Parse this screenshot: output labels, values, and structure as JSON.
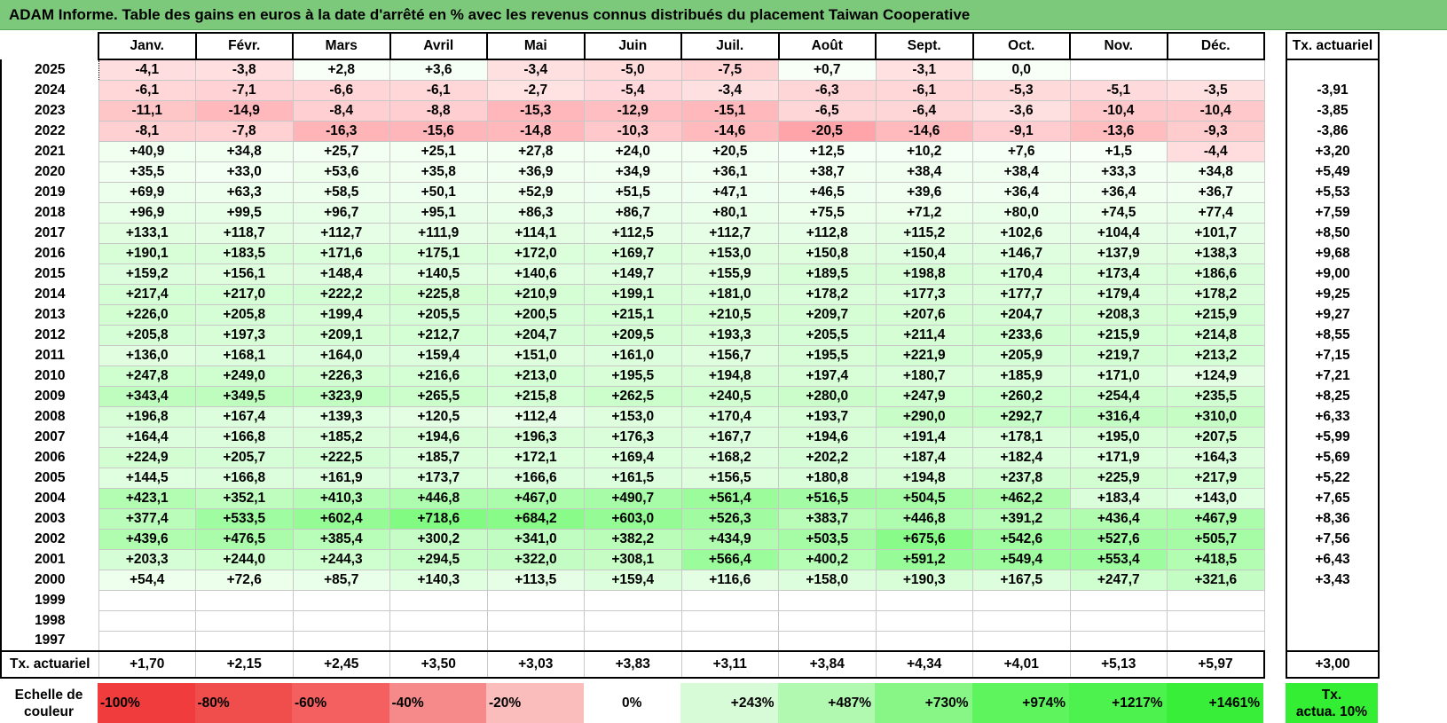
{
  "title": "ADAM Informe. Table des gains en euros à la date d'arrêté en % avec les revenus connus distribués du placement Taiwan Cooperative",
  "months": [
    "Janv.",
    "Févr.",
    "Mars",
    "Avril",
    "Mai",
    "Juin",
    "Juil.",
    "Août",
    "Sept.",
    "Oct.",
    "Nov.",
    "Déc."
  ],
  "actuarial_header": "Tx. actuariel",
  "rows": [
    {
      "year": "2025",
      "values": [
        "-4,1",
        "-3,8",
        "+2,8",
        "+3,6",
        "-3,4",
        "-5,0",
        "-7,5",
        "+0,7",
        "-3,1",
        "0,0",
        "",
        ""
      ],
      "rate": ""
    },
    {
      "year": "2024",
      "values": [
        "-6,1",
        "-7,1",
        "-6,6",
        "-6,1",
        "-2,7",
        "-5,4",
        "-3,4",
        "-6,3",
        "-6,1",
        "-5,3",
        "-5,1",
        "-3,5"
      ],
      "rate": "-3,91"
    },
    {
      "year": "2023",
      "values": [
        "-11,1",
        "-14,9",
        "-8,4",
        "-8,8",
        "-15,3",
        "-12,9",
        "-15,1",
        "-6,5",
        "-6,4",
        "-3,6",
        "-10,4",
        "-10,4"
      ],
      "rate": "-3,85"
    },
    {
      "year": "2022",
      "values": [
        "-8,1",
        "-7,8",
        "-16,3",
        "-15,6",
        "-14,8",
        "-10,3",
        "-14,6",
        "-20,5",
        "-14,6",
        "-9,1",
        "-13,6",
        "-9,3"
      ],
      "rate": "-3,86"
    },
    {
      "year": "2021",
      "values": [
        "+40,9",
        "+34,8",
        "+25,7",
        "+25,1",
        "+27,8",
        "+24,0",
        "+20,5",
        "+12,5",
        "+10,2",
        "+7,6",
        "+1,5",
        "-4,4"
      ],
      "rate": "+3,20"
    },
    {
      "year": "2020",
      "values": [
        "+35,5",
        "+33,0",
        "+53,6",
        "+35,8",
        "+36,9",
        "+34,9",
        "+36,1",
        "+38,7",
        "+38,4",
        "+38,4",
        "+33,3",
        "+34,8"
      ],
      "rate": "+5,49"
    },
    {
      "year": "2019",
      "values": [
        "+69,9",
        "+63,3",
        "+58,5",
        "+50,1",
        "+52,9",
        "+51,5",
        "+47,1",
        "+46,5",
        "+39,6",
        "+36,4",
        "+36,4",
        "+36,7"
      ],
      "rate": "+5,53"
    },
    {
      "year": "2018",
      "values": [
        "+96,9",
        "+99,5",
        "+96,7",
        "+95,1",
        "+86,3",
        "+86,7",
        "+80,1",
        "+75,5",
        "+71,2",
        "+80,0",
        "+74,5",
        "+77,4"
      ],
      "rate": "+7,59"
    },
    {
      "year": "2017",
      "values": [
        "+133,1",
        "+118,7",
        "+112,7",
        "+111,9",
        "+114,1",
        "+112,5",
        "+112,7",
        "+112,8",
        "+115,2",
        "+102,6",
        "+104,4",
        "+101,7"
      ],
      "rate": "+8,50"
    },
    {
      "year": "2016",
      "values": [
        "+190,1",
        "+183,5",
        "+171,6",
        "+175,1",
        "+172,0",
        "+169,7",
        "+153,0",
        "+150,8",
        "+150,4",
        "+146,7",
        "+137,9",
        "+138,3"
      ],
      "rate": "+9,68"
    },
    {
      "year": "2015",
      "values": [
        "+159,2",
        "+156,1",
        "+148,4",
        "+140,5",
        "+140,6",
        "+149,7",
        "+155,9",
        "+189,5",
        "+198,8",
        "+170,4",
        "+173,4",
        "+186,6"
      ],
      "rate": "+9,00"
    },
    {
      "year": "2014",
      "values": [
        "+217,4",
        "+217,0",
        "+222,2",
        "+225,8",
        "+210,9",
        "+199,1",
        "+181,0",
        "+178,2",
        "+177,3",
        "+177,7",
        "+179,4",
        "+178,2"
      ],
      "rate": "+9,25"
    },
    {
      "year": "2013",
      "values": [
        "+226,0",
        "+205,8",
        "+199,4",
        "+205,5",
        "+200,5",
        "+215,1",
        "+210,5",
        "+209,7",
        "+207,6",
        "+204,7",
        "+208,3",
        "+215,9"
      ],
      "rate": "+9,27"
    },
    {
      "year": "2012",
      "values": [
        "+205,8",
        "+197,3",
        "+209,1",
        "+212,7",
        "+204,7",
        "+209,5",
        "+193,3",
        "+205,5",
        "+211,4",
        "+233,6",
        "+215,9",
        "+214,8"
      ],
      "rate": "+8,55"
    },
    {
      "year": "2011",
      "values": [
        "+136,0",
        "+168,1",
        "+164,0",
        "+159,4",
        "+151,0",
        "+161,0",
        "+156,7",
        "+195,5",
        "+221,9",
        "+205,9",
        "+219,7",
        "+213,2"
      ],
      "rate": "+7,15"
    },
    {
      "year": "2010",
      "values": [
        "+247,8",
        "+249,0",
        "+226,3",
        "+216,6",
        "+213,0",
        "+195,5",
        "+194,8",
        "+197,4",
        "+180,7",
        "+185,9",
        "+171,0",
        "+124,9"
      ],
      "rate": "+7,21"
    },
    {
      "year": "2009",
      "values": [
        "+343,4",
        "+349,5",
        "+323,9",
        "+265,5",
        "+215,8",
        "+262,5",
        "+240,5",
        "+280,0",
        "+247,9",
        "+260,2",
        "+254,4",
        "+235,5"
      ],
      "rate": "+8,25"
    },
    {
      "year": "2008",
      "values": [
        "+196,8",
        "+167,4",
        "+139,3",
        "+120,5",
        "+112,4",
        "+153,0",
        "+170,4",
        "+193,7",
        "+290,0",
        "+292,7",
        "+316,4",
        "+310,0"
      ],
      "rate": "+6,33"
    },
    {
      "year": "2007",
      "values": [
        "+164,4",
        "+166,8",
        "+185,2",
        "+194,6",
        "+196,3",
        "+176,3",
        "+167,7",
        "+194,6",
        "+191,4",
        "+178,1",
        "+195,0",
        "+207,5"
      ],
      "rate": "+5,99"
    },
    {
      "year": "2006",
      "values": [
        "+224,9",
        "+205,7",
        "+222,5",
        "+185,7",
        "+172,1",
        "+169,4",
        "+168,2",
        "+202,2",
        "+187,4",
        "+182,4",
        "+171,9",
        "+164,3"
      ],
      "rate": "+5,69"
    },
    {
      "year": "2005",
      "values": [
        "+144,5",
        "+166,8",
        "+161,9",
        "+173,7",
        "+166,6",
        "+161,5",
        "+156,5",
        "+180,8",
        "+194,8",
        "+237,8",
        "+225,9",
        "+217,9"
      ],
      "rate": "+5,22"
    },
    {
      "year": "2004",
      "values": [
        "+423,1",
        "+352,1",
        "+410,3",
        "+446,8",
        "+467,0",
        "+490,7",
        "+561,4",
        "+516,5",
        "+504,5",
        "+462,2",
        "+183,4",
        "+143,0"
      ],
      "rate": "+7,65"
    },
    {
      "year": "2003",
      "values": [
        "+377,4",
        "+533,5",
        "+602,4",
        "+718,6",
        "+684,2",
        "+603,0",
        "+526,3",
        "+383,7",
        "+446,8",
        "+391,2",
        "+436,4",
        "+467,9"
      ],
      "rate": "+8,36"
    },
    {
      "year": "2002",
      "values": [
        "+439,6",
        "+476,5",
        "+385,4",
        "+300,2",
        "+341,0",
        "+382,2",
        "+434,9",
        "+503,5",
        "+675,6",
        "+542,6",
        "+527,6",
        "+505,7"
      ],
      "rate": "+7,56"
    },
    {
      "year": "2001",
      "values": [
        "+203,3",
        "+244,0",
        "+244,3",
        "+294,5",
        "+322,0",
        "+308,1",
        "+566,4",
        "+400,2",
        "+591,2",
        "+549,4",
        "+553,4",
        "+418,5"
      ],
      "rate": "+6,43"
    },
    {
      "year": "2000",
      "values": [
        "+54,4",
        "+72,6",
        "+85,7",
        "+140,3",
        "+113,5",
        "+159,4",
        "+116,6",
        "+158,0",
        "+190,3",
        "+167,5",
        "+247,7",
        "+321,6"
      ],
      "rate": "+3,43"
    },
    {
      "year": "1999",
      "values": [
        "",
        "",
        "",
        "",
        "",
        "",
        "",
        "",
        "",
        "",
        "",
        ""
      ],
      "rate": ""
    },
    {
      "year": "1998",
      "values": [
        "",
        "",
        "",
        "",
        "",
        "",
        "",
        "",
        "",
        "",
        "",
        ""
      ],
      "rate": ""
    },
    {
      "year": "1997",
      "values": [
        "",
        "",
        "",
        "",
        "",
        "",
        "",
        "",
        "",
        "",
        "",
        ""
      ],
      "rate": ""
    }
  ],
  "summary": {
    "label": "Tx. actuariel",
    "values": [
      "+1,70",
      "+2,15",
      "+2,45",
      "+3,50",
      "+3,03",
      "+3,83",
      "+3,11",
      "+3,84",
      "+4,34",
      "+4,01",
      "+5,13",
      "+5,97"
    ],
    "rate": "+3,00"
  },
  "scale": {
    "label_line1": "Echelle de",
    "label_line2": "couleur",
    "items": [
      "-100%",
      "-80%",
      "-60%",
      "-40%",
      "-20%",
      "0%",
      "+243%",
      "+487%",
      "+730%",
      "+974%",
      "+1217%",
      "+1461%"
    ],
    "colors": [
      "#f03c3c",
      "#f04d4d",
      "#f46060",
      "#f68a8a",
      "#fbbcbc",
      "#ffffff",
      "#d6fbd6",
      "#b1f8b1",
      "#87f687",
      "#5ef45e",
      "#4ef24e",
      "#38ee38"
    ],
    "tx_line1": "Tx.",
    "tx_line2": "actua. 10%",
    "tx_color": "#33ee33"
  }
}
